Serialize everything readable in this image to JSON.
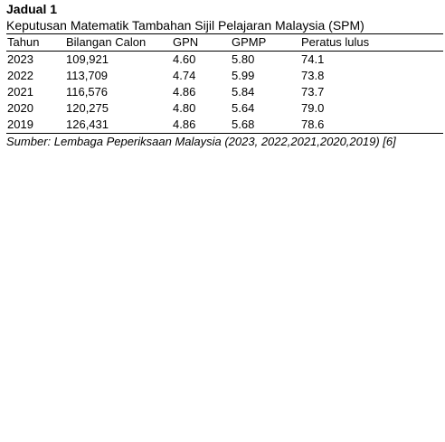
{
  "document": {
    "label": "Jadual 1",
    "caption": "Keputusan Matematik Tambahan Sijil Pelajaran Malaysia (SPM)",
    "source": "Sumber: Lembaga Peperiksaan Malaysia (2023, 2022,2021,2020,2019) [6]"
  },
  "table": {
    "headers": [
      "Tahun",
      "Bilangan Calon",
      "GPN",
      "GPMP",
      "Peratus lulus"
    ],
    "rows": [
      [
        "2023",
        "109,921",
        "4.60",
        "5.80",
        "74.1"
      ],
      [
        "2022",
        "113,709",
        "4.74",
        "5.99",
        "73.8"
      ],
      [
        "2021",
        "116,576",
        "4.86",
        "5.84",
        "73.7"
      ],
      [
        "2020",
        "120,275",
        "4.80",
        "5.64",
        "79.0"
      ],
      [
        "2019",
        "126,431",
        "4.86",
        "5.68",
        "78.6"
      ]
    ]
  }
}
